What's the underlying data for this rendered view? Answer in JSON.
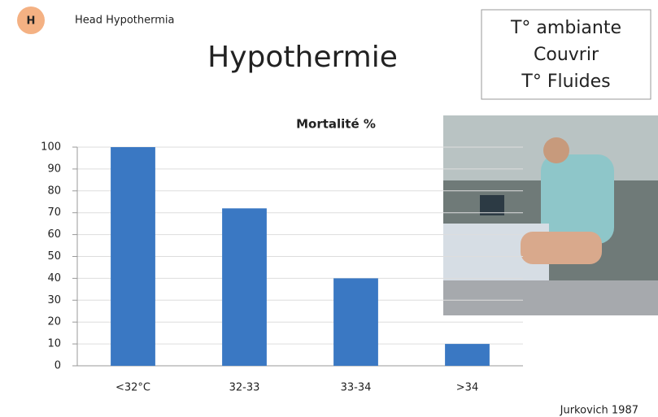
{
  "slide": {
    "badge": "H",
    "header": "Head Hypothermia",
    "title": "Hypothermie",
    "box_lines": [
      "T° ambiante",
      "Couvrir",
      "T° Fluides"
    ],
    "citation": "Jurkovich 1987"
  },
  "chart_data": {
    "type": "bar",
    "title": "Mortalité %",
    "categories": [
      "<32°C",
      "32-33",
      "33-34",
      ">34"
    ],
    "values": [
      100,
      72,
      40,
      10
    ],
    "color": "#3a78c3",
    "ylim": [
      0,
      100
    ],
    "yticks": [
      0,
      10,
      20,
      30,
      40,
      50,
      60,
      70,
      80,
      90,
      100
    ],
    "grid": true
  }
}
